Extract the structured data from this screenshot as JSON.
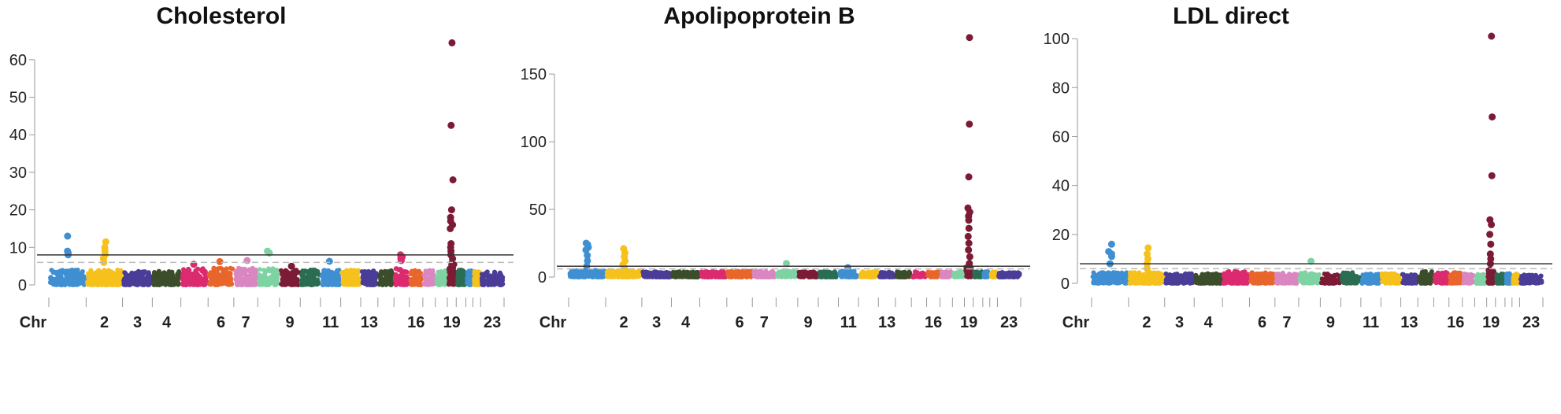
{
  "chart_data": [
    {
      "type": "scatter",
      "title": "Cholesterol",
      "xlabel": "Chr",
      "ylim": [
        0,
        65
      ],
      "yticks": [
        0,
        10,
        20,
        30,
        40,
        50,
        60
      ],
      "x_tick_labels": [
        "2",
        "3",
        "4",
        "6",
        "7",
        "9",
        "11",
        "13",
        "16",
        "19",
        "23"
      ],
      "significance_line": 8,
      "suggestive_line": 6,
      "chromosomes": [
        {
          "chr": 1,
          "peak": 4,
          "hits": [
            13,
            9,
            8.5,
            8
          ]
        },
        {
          "chr": 2,
          "peak": 4,
          "hits": [
            11.5,
            10,
            9,
            8,
            7,
            6
          ]
        },
        {
          "chr": 3,
          "peak": 3.8,
          "hits": []
        },
        {
          "chr": 4,
          "peak": 3.8,
          "hits": []
        },
        {
          "chr": 5,
          "peak": 4.5,
          "hits": [
            5.5
          ]
        },
        {
          "chr": 6,
          "peak": 4.5,
          "hits": [
            6.2
          ]
        },
        {
          "chr": 7,
          "peak": 4.5,
          "hits": [
            6.5
          ]
        },
        {
          "chr": 8,
          "peak": 4.5,
          "hits": [
            9,
            8.5
          ]
        },
        {
          "chr": 9,
          "peak": 4,
          "hits": [
            5
          ]
        },
        {
          "chr": 10,
          "peak": 4,
          "hits": []
        },
        {
          "chr": 11,
          "peak": 4,
          "hits": [
            6.3
          ]
        },
        {
          "chr": 12,
          "peak": 4,
          "hits": []
        },
        {
          "chr": 13,
          "peak": 3.8,
          "hits": []
        },
        {
          "chr": 14,
          "peak": 3.8,
          "hits": []
        },
        {
          "chr": 15,
          "peak": 4.5,
          "hits": [
            8,
            7.5,
            7,
            6.5
          ]
        },
        {
          "chr": 16,
          "peak": 4,
          "hits": []
        },
        {
          "chr": 17,
          "peak": 4,
          "hits": []
        },
        {
          "chr": 18,
          "peak": 3.8,
          "hits": []
        },
        {
          "chr": 19,
          "peak": 6,
          "hits": [
            64.5,
            42.5,
            28,
            20,
            18,
            17,
            16,
            15,
            11,
            10,
            9,
            8,
            7
          ]
        },
        {
          "chr": 20,
          "peak": 4,
          "hits": []
        },
        {
          "chr": 21,
          "peak": 3.8,
          "hits": []
        },
        {
          "chr": 22,
          "peak": 3.8,
          "hits": []
        },
        {
          "chr": 23,
          "peak": 3.5,
          "hits": []
        }
      ]
    },
    {
      "type": "scatter",
      "title": "Apolipoprotein B",
      "xlabel": "Chr",
      "ylim": [
        0,
        178
      ],
      "yticks": [
        0,
        50,
        100,
        150
      ],
      "x_tick_labels": [
        "2",
        "3",
        "4",
        "6",
        "7",
        "9",
        "11",
        "13",
        "16",
        "19",
        "23"
      ],
      "significance_line": 8,
      "suggestive_line": 6,
      "chromosomes": [
        {
          "chr": 1,
          "peak": 5,
          "hits": [
            25,
            24,
            22,
            20,
            16,
            12,
            8
          ]
        },
        {
          "chr": 2,
          "peak": 5,
          "hits": [
            21,
            18,
            15,
            12,
            9,
            7
          ]
        },
        {
          "chr": 3,
          "peak": 4,
          "hits": []
        },
        {
          "chr": 4,
          "peak": 4,
          "hits": []
        },
        {
          "chr": 5,
          "peak": 4.5,
          "hits": []
        },
        {
          "chr": 6,
          "peak": 4.5,
          "hits": []
        },
        {
          "chr": 7,
          "peak": 4.5,
          "hits": []
        },
        {
          "chr": 8,
          "peak": 4.5,
          "hits": [
            10
          ]
        },
        {
          "chr": 9,
          "peak": 4,
          "hits": []
        },
        {
          "chr": 10,
          "peak": 4,
          "hits": []
        },
        {
          "chr": 11,
          "peak": 4.5,
          "hits": [
            7
          ]
        },
        {
          "chr": 12,
          "peak": 4,
          "hits": []
        },
        {
          "chr": 13,
          "peak": 4,
          "hits": []
        },
        {
          "chr": 14,
          "peak": 4,
          "hits": []
        },
        {
          "chr": 15,
          "peak": 4,
          "hits": []
        },
        {
          "chr": 16,
          "peak": 4,
          "hits": []
        },
        {
          "chr": 17,
          "peak": 4,
          "hits": []
        },
        {
          "chr": 18,
          "peak": 4,
          "hits": []
        },
        {
          "chr": 19,
          "peak": 8,
          "hits": [
            177,
            113,
            74,
            51,
            48,
            45,
            42,
            36,
            30,
            25,
            20,
            15,
            10
          ]
        },
        {
          "chr": 20,
          "peak": 4,
          "hits": []
        },
        {
          "chr": 21,
          "peak": 4,
          "hits": []
        },
        {
          "chr": 22,
          "peak": 4,
          "hits": []
        },
        {
          "chr": 23,
          "peak": 3.5,
          "hits": []
        }
      ]
    },
    {
      "type": "scatter",
      "title": "LDL direct",
      "xlabel": "Chr",
      "ylim": [
        0,
        101
      ],
      "yticks": [
        0,
        20,
        40,
        60,
        80,
        100
      ],
      "x_tick_labels": [
        "2",
        "3",
        "4",
        "6",
        "7",
        "9",
        "11",
        "13",
        "16",
        "19",
        "23"
      ],
      "significance_line": 8,
      "suggestive_line": 6,
      "chromosomes": [
        {
          "chr": 1,
          "peak": 4.5,
          "hits": [
            16,
            13,
            12,
            11,
            8
          ]
        },
        {
          "chr": 2,
          "peak": 4.5,
          "hits": [
            14.5,
            12,
            10,
            8,
            6
          ]
        },
        {
          "chr": 3,
          "peak": 4,
          "hits": []
        },
        {
          "chr": 4,
          "peak": 4,
          "hits": []
        },
        {
          "chr": 5,
          "peak": 5,
          "hits": []
        },
        {
          "chr": 6,
          "peak": 4.5,
          "hits": []
        },
        {
          "chr": 7,
          "peak": 4.5,
          "hits": []
        },
        {
          "chr": 8,
          "peak": 4.5,
          "hits": [
            9
          ]
        },
        {
          "chr": 9,
          "peak": 4,
          "hits": []
        },
        {
          "chr": 10,
          "peak": 4.5,
          "hits": []
        },
        {
          "chr": 11,
          "peak": 4,
          "hits": []
        },
        {
          "chr": 12,
          "peak": 4,
          "hits": []
        },
        {
          "chr": 13,
          "peak": 4,
          "hits": []
        },
        {
          "chr": 14,
          "peak": 5,
          "hits": []
        },
        {
          "chr": 15,
          "peak": 4.5,
          "hits": []
        },
        {
          "chr": 16,
          "peak": 4.5,
          "hits": []
        },
        {
          "chr": 17,
          "peak": 4,
          "hits": []
        },
        {
          "chr": 18,
          "peak": 4,
          "hits": []
        },
        {
          "chr": 19,
          "peak": 6,
          "hits": [
            101,
            68,
            44,
            26,
            24,
            20,
            16,
            12,
            10,
            8
          ]
        },
        {
          "chr": 20,
          "peak": 4,
          "hits": []
        },
        {
          "chr": 21,
          "peak": 4,
          "hits": []
        },
        {
          "chr": 22,
          "peak": 4,
          "hits": []
        },
        {
          "chr": 23,
          "peak": 3.5,
          "hits": []
        }
      ]
    }
  ],
  "palette": [
    "#3f8fd2",
    "#f6c11b",
    "#4a3d97",
    "#3b4d2a",
    "#db2a6f",
    "#e8662b",
    "#d986c1",
    "#7fd3a3",
    "#7c1b35",
    "#2b6d53"
  ]
}
